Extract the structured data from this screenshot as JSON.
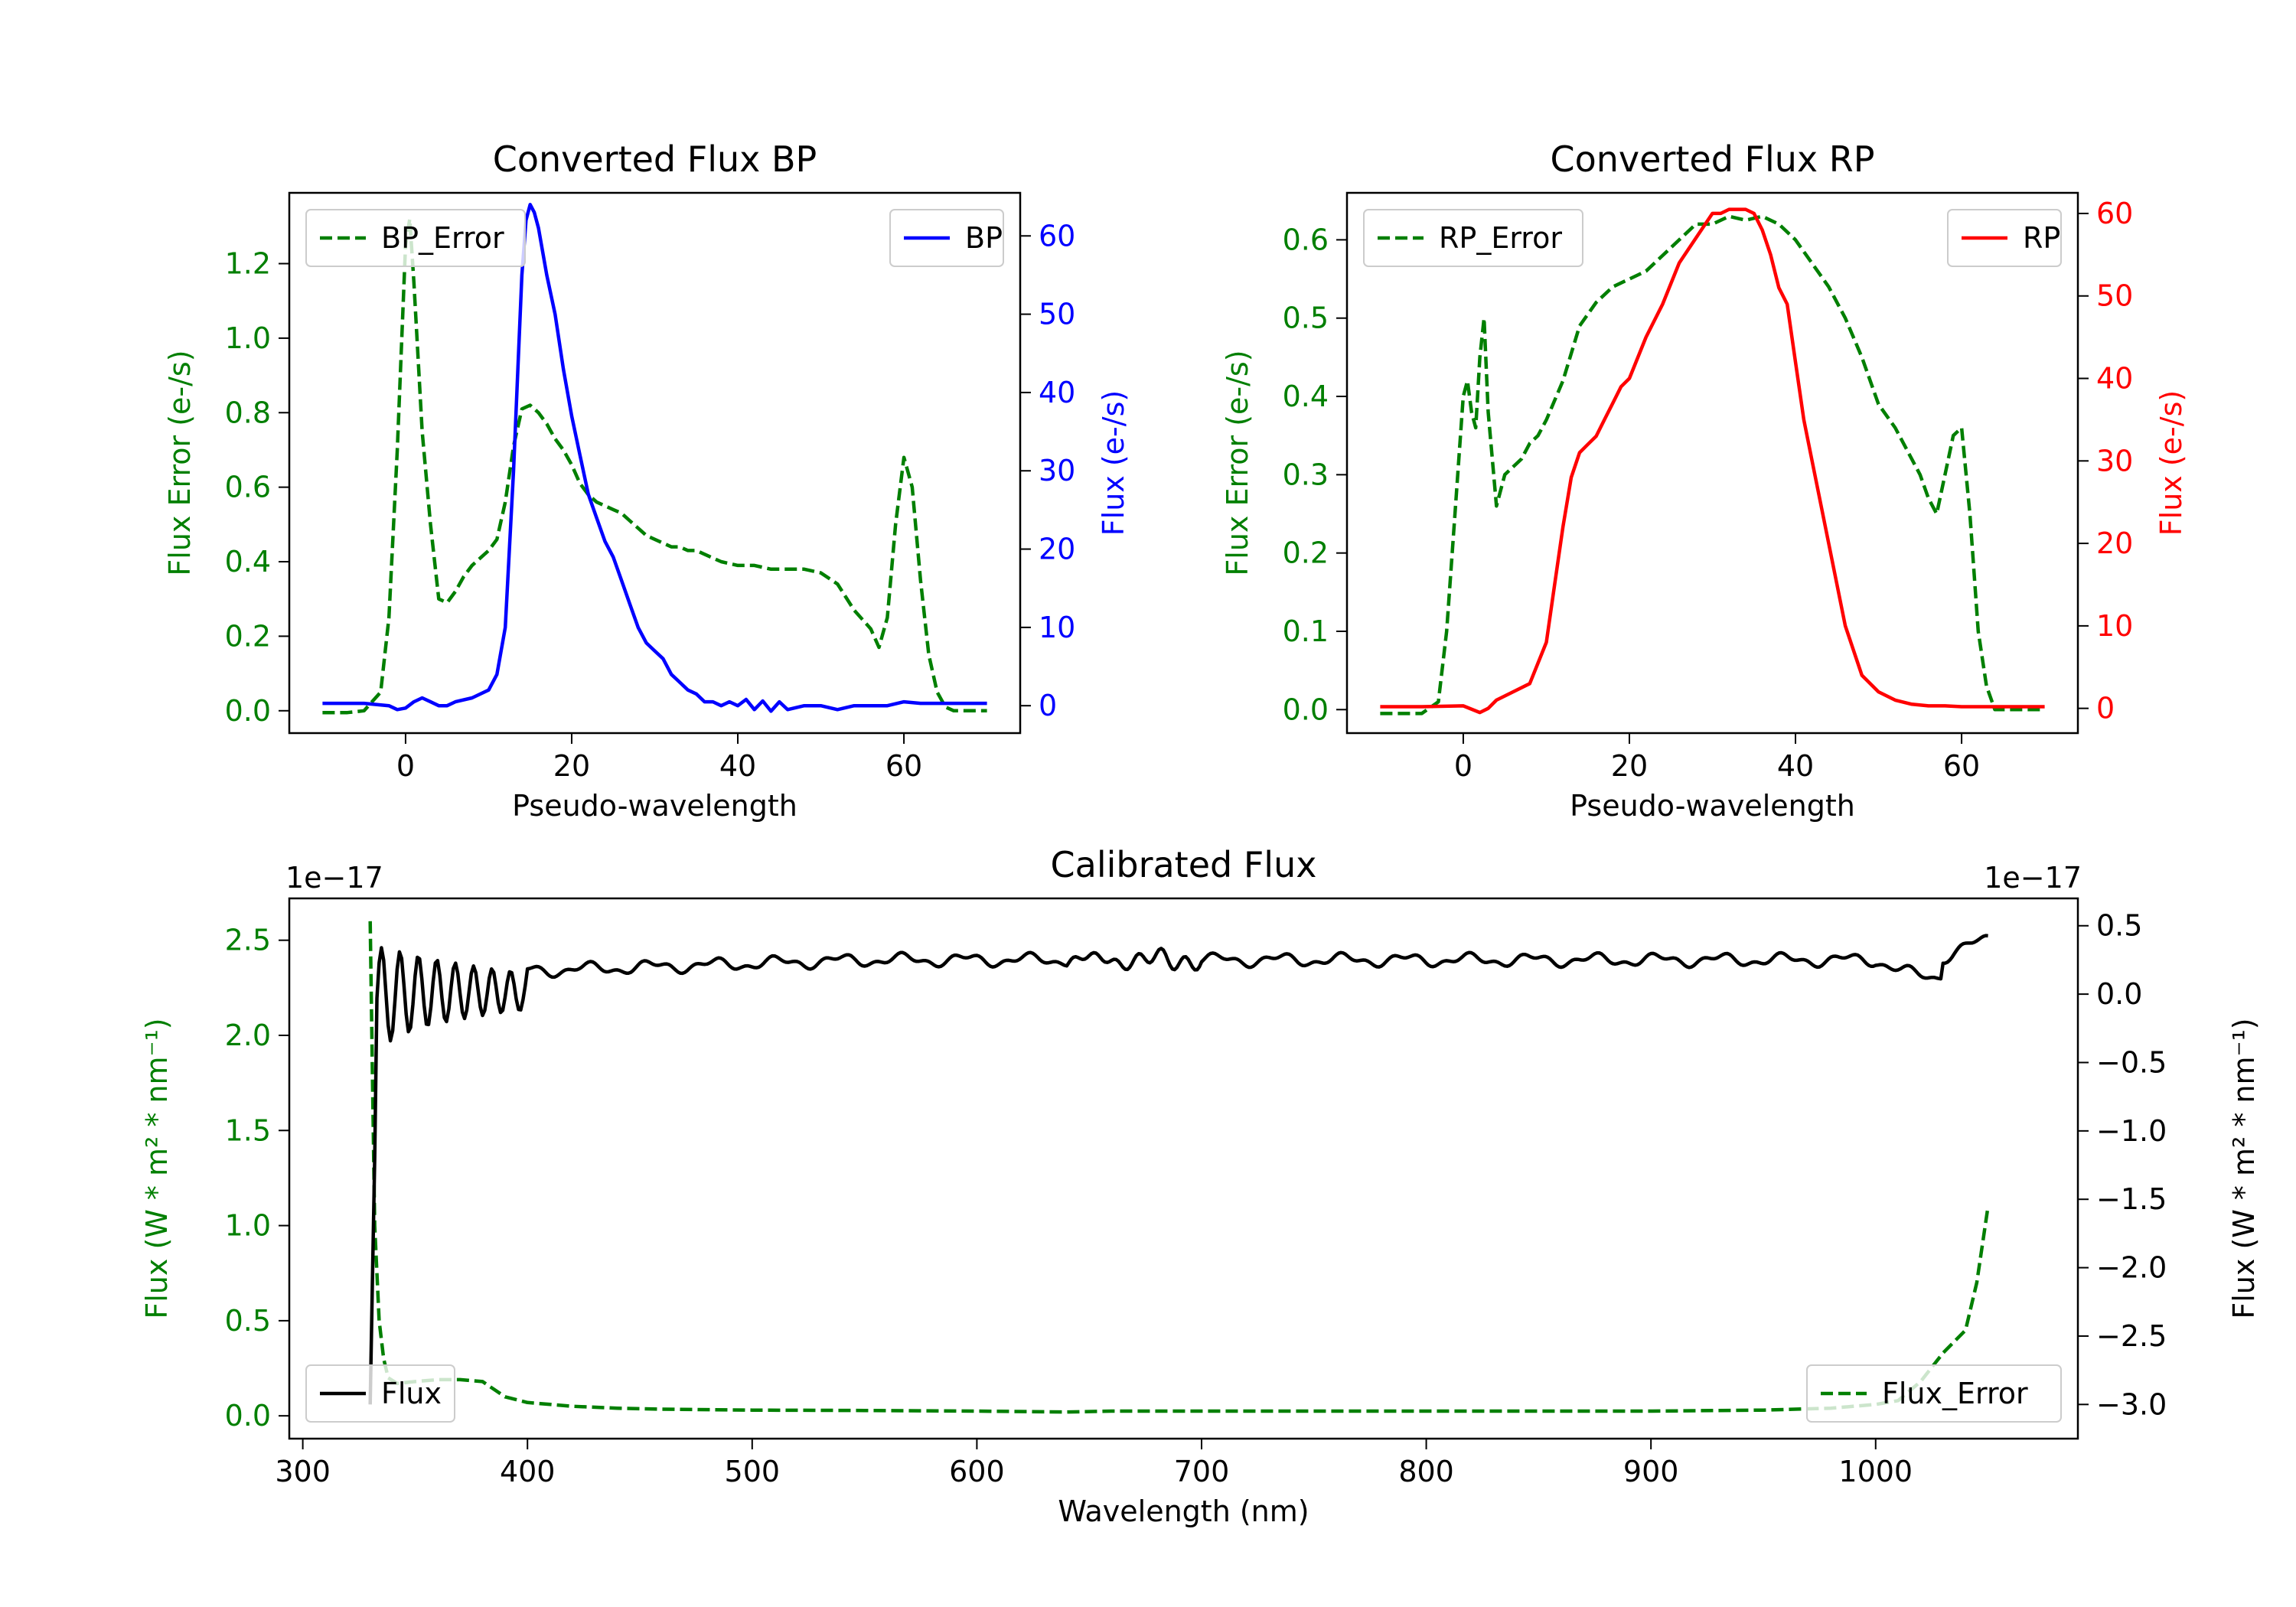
{
  "colors": {
    "green": "#007f00",
    "blue": "#0000ff",
    "red": "#ff0000",
    "black": "#000000"
  },
  "chart_data": [
    {
      "id": "bp",
      "type": "line",
      "title": "Converted Flux BP",
      "xlabel": "Pseudo-wavelength",
      "ylabel_left": "Flux Error (e-/s)",
      "ylabel_right": "Flux (e-/s)",
      "xlim": [
        -14,
        74
      ],
      "ylim_left": [
        -0.06,
        1.39
      ],
      "ylim_right": [
        -3.5,
        65.5
      ],
      "xticks": [
        "0",
        "20",
        "40",
        "60"
      ],
      "yticks_left": [
        "0.0",
        "0.2",
        "0.4",
        "0.6",
        "0.8",
        "1.0",
        "1.2"
      ],
      "yticks_right": [
        "0",
        "10",
        "20",
        "30",
        "40",
        "50",
        "60"
      ],
      "series": [
        {
          "name": "BP_Error",
          "axis": "left",
          "style": "dashed",
          "color": "green",
          "legend": "top-left",
          "x": [
            -10,
            -7,
            -5,
            -3,
            -2,
            -1,
            0,
            0.5,
            1,
            2,
            3,
            4,
            5,
            6,
            7,
            8,
            9,
            10,
            11,
            12,
            13,
            14,
            15,
            16,
            17,
            18,
            19,
            20,
            21,
            22,
            23,
            24,
            25,
            26,
            27,
            28,
            29,
            30,
            31,
            32,
            33,
            34,
            35,
            36,
            37,
            38,
            40,
            42,
            44,
            46,
            48,
            50,
            52,
            54,
            56,
            57,
            58,
            59,
            60,
            61,
            62,
            63,
            64,
            65,
            66,
            68,
            70
          ],
          "y": [
            -0.005,
            -0.005,
            0.0,
            0.05,
            0.25,
            0.7,
            1.25,
            1.32,
            1.15,
            0.75,
            0.5,
            0.3,
            0.29,
            0.32,
            0.36,
            0.39,
            0.41,
            0.43,
            0.46,
            0.56,
            0.71,
            0.81,
            0.82,
            0.8,
            0.77,
            0.73,
            0.7,
            0.66,
            0.61,
            0.58,
            0.56,
            0.55,
            0.54,
            0.53,
            0.51,
            0.49,
            0.47,
            0.46,
            0.45,
            0.44,
            0.44,
            0.43,
            0.43,
            0.42,
            0.41,
            0.4,
            0.39,
            0.39,
            0.38,
            0.38,
            0.38,
            0.37,
            0.34,
            0.27,
            0.22,
            0.17,
            0.25,
            0.5,
            0.68,
            0.6,
            0.35,
            0.15,
            0.05,
            0.01,
            0.0,
            0.0,
            0.0
          ]
        },
        {
          "name": "BP",
          "axis": "right",
          "style": "solid",
          "color": "blue",
          "legend": "top-right",
          "x": [
            -10,
            -5,
            -2,
            -1,
            0,
            1,
            2,
            3,
            4,
            5,
            6,
            8,
            10,
            11,
            12,
            13,
            14,
            14.5,
            15,
            15.5,
            16,
            17,
            18,
            19,
            20,
            21,
            22,
            23,
            24,
            25,
            26,
            27,
            28,
            29,
            30,
            31,
            32,
            33,
            34,
            35,
            36,
            37,
            38,
            39,
            40,
            41,
            42,
            43,
            44,
            45,
            46,
            48,
            50,
            52,
            54,
            56,
            58,
            60,
            62,
            64,
            66,
            68,
            70
          ],
          "y": [
            0.3,
            0.3,
            0.0,
            -0.5,
            -0.3,
            0.5,
            1.0,
            0.5,
            0.0,
            0.0,
            0.5,
            1.0,
            2.0,
            4.0,
            10,
            30,
            55,
            62,
            64,
            63,
            61,
            55,
            50,
            43,
            37,
            32,
            27,
            24,
            21,
            19,
            16,
            13,
            10,
            8,
            7,
            6,
            4,
            3,
            2,
            1.5,
            0.5,
            0.5,
            0.0,
            0.5,
            0.0,
            0.8,
            -0.5,
            0.6,
            -0.7,
            0.5,
            -0.5,
            0.0,
            0.0,
            -0.5,
            0.0,
            0.0,
            0.0,
            0.5,
            0.3,
            0.3,
            0.3,
            0.3,
            0.3
          ]
        }
      ]
    },
    {
      "id": "rp",
      "type": "line",
      "title": "Converted Flux RP",
      "xlabel": "Pseudo-wavelength",
      "ylabel_left": "Flux Error (e-/s)",
      "ylabel_right": "Flux (e-/s)",
      "xlim": [
        -14,
        74
      ],
      "ylim_left": [
        -0.03,
        0.66
      ],
      "ylim_right": [
        -3,
        62.5
      ],
      "xticks": [
        "0",
        "20",
        "40",
        "60"
      ],
      "yticks_left": [
        "0.0",
        "0.1",
        "0.2",
        "0.3",
        "0.4",
        "0.5",
        "0.6"
      ],
      "yticks_right": [
        "0",
        "10",
        "20",
        "30",
        "40",
        "50",
        "60"
      ],
      "series": [
        {
          "name": "RP_Error",
          "axis": "left",
          "style": "dashed",
          "color": "green",
          "legend": "top-left",
          "x": [
            -10,
            -5,
            -3,
            -2,
            -1,
            0,
            0.5,
            1,
            1.5,
            2,
            2.5,
            3,
            4,
            5,
            6,
            7,
            8,
            9,
            10,
            12,
            14,
            16,
            18,
            20,
            22,
            24,
            26,
            28,
            30,
            32,
            34,
            36,
            38,
            40,
            42,
            44,
            46,
            48,
            50,
            52,
            54,
            55,
            56,
            57,
            58,
            59,
            60,
            61,
            62,
            63,
            64,
            66,
            68,
            70
          ],
          "y": [
            -0.005,
            -0.005,
            0.01,
            0.1,
            0.25,
            0.4,
            0.42,
            0.38,
            0.36,
            0.45,
            0.5,
            0.38,
            0.26,
            0.3,
            0.31,
            0.32,
            0.34,
            0.35,
            0.37,
            0.42,
            0.49,
            0.52,
            0.54,
            0.55,
            0.56,
            0.58,
            0.6,
            0.62,
            0.62,
            0.63,
            0.625,
            0.63,
            0.62,
            0.6,
            0.57,
            0.54,
            0.5,
            0.45,
            0.39,
            0.36,
            0.32,
            0.3,
            0.27,
            0.25,
            0.3,
            0.35,
            0.36,
            0.25,
            0.1,
            0.03,
            0.0,
            0.0,
            0.0,
            0.0
          ],
          "note": "dashed error curve, dips near 4 and 57"
        },
        {
          "name": "RP",
          "axis": "right",
          "style": "solid",
          "color": "red",
          "legend": "top-right",
          "x": [
            -10,
            -5,
            0,
            2,
            3,
            4,
            6,
            8,
            10,
            11,
            12,
            13,
            14,
            15,
            16,
            17,
            18,
            19,
            20,
            22,
            24,
            26,
            28,
            30,
            31,
            32,
            33,
            34,
            35,
            36,
            37,
            38,
            39,
            40,
            41,
            42,
            44,
            46,
            48,
            50,
            52,
            54,
            56,
            58,
            60,
            64,
            68,
            70
          ],
          "y": [
            0.2,
            0.2,
            0.3,
            -0.5,
            0.0,
            1.0,
            2.0,
            3.0,
            8,
            15,
            22,
            28,
            31,
            32,
            33,
            35,
            37,
            39,
            40,
            45,
            49,
            54,
            57,
            60,
            60,
            60.5,
            60.5,
            60.5,
            60,
            58,
            55,
            51,
            49,
            42,
            35,
            30,
            20,
            10,
            4,
            2,
            1,
            0.5,
            0.3,
            0.3,
            0.2,
            0.2,
            0.2,
            0.2
          ]
        }
      ]
    },
    {
      "id": "calibrated",
      "type": "line",
      "title": "Calibrated Flux",
      "xlabel": "Wavelength (nm)",
      "ylabel_left": "Flux (W * m² * nm⁻¹)",
      "ylabel_right": "Flux (W * m² * nm⁻¹)",
      "offset_left": "1e−17",
      "offset_right": "1e−17",
      "units_note": "axis values shown in units of 1e-17",
      "xlim": [
        294,
        1090
      ],
      "ylim_left": [
        -0.12,
        2.72
      ],
      "ylim_right": [
        -3.25,
        0.7
      ],
      "xticks": [
        "300",
        "400",
        "500",
        "600",
        "700",
        "800",
        "900",
        "1000"
      ],
      "yticks_left": [
        "0.0",
        "0.5",
        "1.0",
        "1.5",
        "2.0",
        "2.5"
      ],
      "yticks_right": [
        "0.5",
        "0.0",
        "−0.5",
        "−1.0",
        "−1.5",
        "−2.0",
        "−2.5",
        "−3.0"
      ],
      "series": [
        {
          "name": "Flux_Error",
          "axis": "left",
          "style": "dashed",
          "color": "green",
          "legend": "bottom-right",
          "x": [
            330,
            331,
            332,
            334,
            336,
            338,
            342,
            350,
            360,
            370,
            380,
            390,
            400,
            420,
            440,
            460,
            500,
            550,
            600,
            640,
            660,
            700,
            800,
            900,
            950,
            980,
            1000,
            1010,
            1020,
            1030,
            1040,
            1045,
            1050
          ],
          "y": [
            2.6,
            1.8,
            1.0,
            0.5,
            0.3,
            0.2,
            0.17,
            0.18,
            0.19,
            0.19,
            0.18,
            0.1,
            0.07,
            0.05,
            0.04,
            0.035,
            0.03,
            0.028,
            0.025,
            0.02,
            0.025,
            0.025,
            0.025,
            0.025,
            0.03,
            0.04,
            0.06,
            0.08,
            0.18,
            0.33,
            0.45,
            0.7,
            1.1
          ]
        },
        {
          "name": "Flux",
          "axis": "right",
          "style": "solid",
          "color": "black",
          "legend": "bottom-left",
          "x_start": 330,
          "x_end": 1050,
          "step": 1,
          "description": "oscillating near-flat spectrum, large ringing below 400 nm, bump at end"
        }
      ]
    }
  ]
}
